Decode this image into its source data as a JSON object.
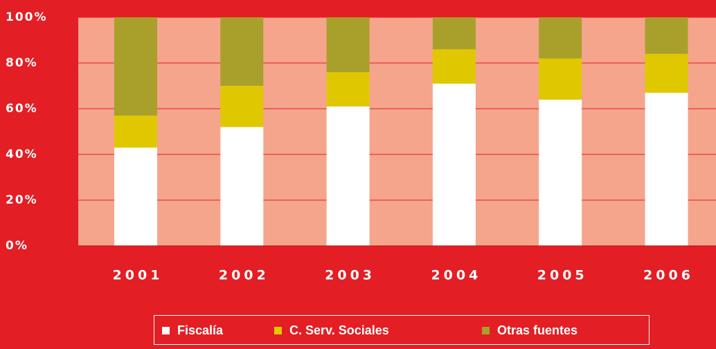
{
  "chart_data": {
    "type": "stacked_bar",
    "categories": [
      "2001",
      "2002",
      "2003",
      "2004",
      "2005",
      "2006"
    ],
    "series": [
      {
        "name": "Fiscalía",
        "color": "#ffffff",
        "values": [
          43,
          52,
          61,
          71,
          64,
          67
        ]
      },
      {
        "name": "C. Serv. Sociales",
        "color": "#e0c800",
        "values": [
          14,
          18,
          15,
          15,
          18,
          17
        ]
      },
      {
        "name": "Otras fuentes",
        "color": "#a9a02b",
        "values": [
          43,
          30,
          24,
          14,
          18,
          16
        ]
      }
    ],
    "ylim": [
      0,
      100
    ],
    "yticks": [
      {
        "value": 0,
        "label": "0%"
      },
      {
        "value": 20,
        "label": "20%"
      },
      {
        "value": 40,
        "label": "40%"
      },
      {
        "value": 60,
        "label": "60%"
      },
      {
        "value": 80,
        "label": "80%"
      },
      {
        "value": 100,
        "label": "100%"
      }
    ],
    "grid": true
  }
}
